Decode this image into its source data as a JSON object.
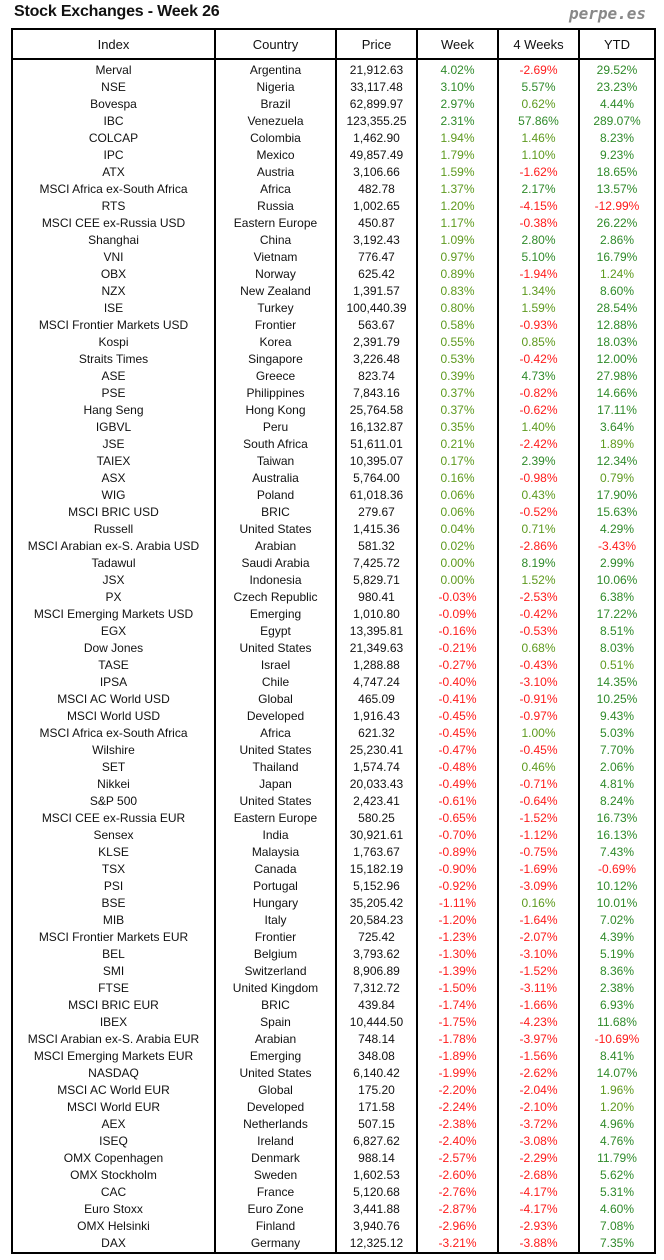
{
  "title": "Stock Exchanges - Week 26",
  "brand": "perpe.es",
  "colors": {
    "positive": "#2f8a2a",
    "negative": "#ff1a1a"
  },
  "headers": [
    "Index",
    "Country",
    "Price",
    "Week",
    "4 Weeks",
    "YTD"
  ],
  "rows": [
    [
      "Merval",
      "Argentina",
      "21,912.63",
      "4.02%",
      "-2.69%",
      "29.52%"
    ],
    [
      "NSE",
      "Nigeria",
      "33,117.48",
      "3.10%",
      "5.57%",
      "23.23%"
    ],
    [
      "Bovespa",
      "Brazil",
      "62,899.97",
      "2.97%",
      "0.62%",
      "4.44%"
    ],
    [
      "IBC",
      "Venezuela",
      "123,355.25",
      "2.31%",
      "57.86%",
      "289.07%"
    ],
    [
      "COLCAP",
      "Colombia",
      "1,462.90",
      "1.94%",
      "1.46%",
      "8.23%"
    ],
    [
      "IPC",
      "Mexico",
      "49,857.49",
      "1.79%",
      "1.10%",
      "9.23%"
    ],
    [
      "ATX",
      "Austria",
      "3,106.66",
      "1.59%",
      "-1.62%",
      "18.65%"
    ],
    [
      "MSCI Africa ex-South Africa",
      "Africa",
      "482.78",
      "1.37%",
      "2.17%",
      "13.57%"
    ],
    [
      "RTS",
      "Russia",
      "1,002.65",
      "1.20%",
      "-4.15%",
      "-12.99%"
    ],
    [
      "MSCI CEE ex-Russia USD",
      "Eastern Europe",
      "450.87",
      "1.17%",
      "-0.38%",
      "26.22%"
    ],
    [
      "Shanghai",
      "China",
      "3,192.43",
      "1.09%",
      "2.80%",
      "2.86%"
    ],
    [
      "VNI",
      "Vietnam",
      "776.47",
      "0.97%",
      "5.10%",
      "16.79%"
    ],
    [
      "OBX",
      "Norway",
      "625.42",
      "0.89%",
      "-1.94%",
      "1.24%"
    ],
    [
      "NZX",
      "New Zealand",
      "1,391.57",
      "0.83%",
      "1.34%",
      "8.60%"
    ],
    [
      "ISE",
      "Turkey",
      "100,440.39",
      "0.80%",
      "1.59%",
      "28.54%"
    ],
    [
      "MSCI Frontier Markets USD",
      "Frontier",
      "563.67",
      "0.58%",
      "-0.93%",
      "12.88%"
    ],
    [
      "Kospi",
      "Korea",
      "2,391.79",
      "0.55%",
      "0.85%",
      "18.03%"
    ],
    [
      "Straits Times",
      "Singapore",
      "3,226.48",
      "0.53%",
      "-0.42%",
      "12.00%"
    ],
    [
      "ASE",
      "Greece",
      "823.74",
      "0.39%",
      "4.73%",
      "27.98%"
    ],
    [
      "PSE",
      "Philippines",
      "7,843.16",
      "0.37%",
      "-0.82%",
      "14.66%"
    ],
    [
      "Hang Seng",
      "Hong Kong",
      "25,764.58",
      "0.37%",
      "-0.62%",
      "17.11%"
    ],
    [
      "IGBVL",
      "Peru",
      "16,132.87",
      "0.35%",
      "1.40%",
      "3.64%"
    ],
    [
      "JSE",
      "South Africa",
      "51,611.01",
      "0.21%",
      "-2.42%",
      "1.89%"
    ],
    [
      "TAIEX",
      "Taiwan",
      "10,395.07",
      "0.17%",
      "2.39%",
      "12.34%"
    ],
    [
      "ASX",
      "Australia",
      "5,764.00",
      "0.16%",
      "-0.98%",
      "0.79%"
    ],
    [
      "WIG",
      "Poland",
      "61,018.36",
      "0.06%",
      "0.43%",
      "17.90%"
    ],
    [
      "MSCI BRIC USD",
      "BRIC",
      "279.67",
      "0.06%",
      "-0.52%",
      "15.63%"
    ],
    [
      "Russell",
      "United States",
      "1,415.36",
      "0.04%",
      "0.71%",
      "4.29%"
    ],
    [
      "MSCI Arabian ex-S. Arabia USD",
      "Arabian",
      "581.32",
      "0.02%",
      "-2.86%",
      "-3.43%"
    ],
    [
      "Tadawul",
      "Saudi Arabia",
      "7,425.72",
      "0.00%",
      "8.19%",
      "2.99%"
    ],
    [
      "JSX",
      "Indonesia",
      "5,829.71",
      "0.00%",
      "1.52%",
      "10.06%"
    ],
    [
      "PX",
      "Czech Republic",
      "980.41",
      "-0.03%",
      "-2.53%",
      "6.38%"
    ],
    [
      "MSCI Emerging Markets USD",
      "Emerging",
      "1,010.80",
      "-0.09%",
      "-0.42%",
      "17.22%"
    ],
    [
      "EGX",
      "Egypt",
      "13,395.81",
      "-0.16%",
      "-0.53%",
      "8.51%"
    ],
    [
      "Dow Jones",
      "United States",
      "21,349.63",
      "-0.21%",
      "0.68%",
      "8.03%"
    ],
    [
      "TASE",
      "Israel",
      "1,288.88",
      "-0.27%",
      "-0.43%",
      "0.51%"
    ],
    [
      "IPSA",
      "Chile",
      "4,747.24",
      "-0.40%",
      "-3.10%",
      "14.35%"
    ],
    [
      "MSCI AC World USD",
      "Global",
      "465.09",
      "-0.41%",
      "-0.91%",
      "10.25%"
    ],
    [
      "MSCI World USD",
      "Developed",
      "1,916.43",
      "-0.45%",
      "-0.97%",
      "9.43%"
    ],
    [
      "MSCI Africa ex-South Africa",
      "Africa",
      "621.32",
      "-0.45%",
      "1.00%",
      "5.03%"
    ],
    [
      "Wilshire",
      "United States",
      "25,230.41",
      "-0.47%",
      "-0.45%",
      "7.70%"
    ],
    [
      "SET",
      "Thailand",
      "1,574.74",
      "-0.48%",
      "0.46%",
      "2.06%"
    ],
    [
      "Nikkei",
      "Japan",
      "20,033.43",
      "-0.49%",
      "-0.71%",
      "4.81%"
    ],
    [
      "S&P 500",
      "United States",
      "2,423.41",
      "-0.61%",
      "-0.64%",
      "8.24%"
    ],
    [
      "MSCI CEE ex-Russia EUR",
      "Eastern Europe",
      "580.25",
      "-0.65%",
      "-1.52%",
      "16.73%"
    ],
    [
      "Sensex",
      "India",
      "30,921.61",
      "-0.70%",
      "-1.12%",
      "16.13%"
    ],
    [
      "KLSE",
      "Malaysia",
      "1,763.67",
      "-0.89%",
      "-0.75%",
      "7.43%"
    ],
    [
      "TSX",
      "Canada",
      "15,182.19",
      "-0.90%",
      "-1.69%",
      "-0.69%"
    ],
    [
      "PSI",
      "Portugal",
      "5,152.96",
      "-0.92%",
      "-3.09%",
      "10.12%"
    ],
    [
      "BSE",
      "Hungary",
      "35,205.42",
      "-1.11%",
      "0.16%",
      "10.01%"
    ],
    [
      "MIB",
      "Italy",
      "20,584.23",
      "-1.20%",
      "-1.64%",
      "7.02%"
    ],
    [
      "MSCI Frontier Markets EUR",
      "Frontier",
      "725.42",
      "-1.23%",
      "-2.07%",
      "4.39%"
    ],
    [
      "BEL",
      "Belgium",
      "3,793.62",
      "-1.30%",
      "-3.10%",
      "5.19%"
    ],
    [
      "SMI",
      "Switzerland",
      "8,906.89",
      "-1.39%",
      "-1.52%",
      "8.36%"
    ],
    [
      "FTSE",
      "United Kingdom",
      "7,312.72",
      "-1.50%",
      "-3.11%",
      "2.38%"
    ],
    [
      "MSCI BRIC EUR",
      "BRIC",
      "439.84",
      "-1.74%",
      "-1.66%",
      "6.93%"
    ],
    [
      "IBEX",
      "Spain",
      "10,444.50",
      "-1.75%",
      "-4.23%",
      "11.68%"
    ],
    [
      "MSCI Arabian ex-S. Arabia EUR",
      "Arabian",
      "748.14",
      "-1.78%",
      "-3.97%",
      "-10.69%"
    ],
    [
      "MSCI Emerging Markets EUR",
      "Emerging",
      "348.08",
      "-1.89%",
      "-1.56%",
      "8.41%"
    ],
    [
      "NASDAQ",
      "United States",
      "6,140.42",
      "-1.99%",
      "-2.62%",
      "14.07%"
    ],
    [
      "MSCI AC World EUR",
      "Global",
      "175.20",
      "-2.20%",
      "-2.04%",
      "1.96%"
    ],
    [
      "MSCI World EUR",
      "Developed",
      "171.58",
      "-2.24%",
      "-2.10%",
      "1.20%"
    ],
    [
      "AEX",
      "Netherlands",
      "507.15",
      "-2.38%",
      "-3.72%",
      "4.96%"
    ],
    [
      "ISEQ",
      "Ireland",
      "6,827.62",
      "-2.40%",
      "-3.08%",
      "4.76%"
    ],
    [
      "OMX Copenhagen",
      "Denmark",
      "988.14",
      "-2.57%",
      "-2.29%",
      "11.79%"
    ],
    [
      "OMX Stockholm",
      "Sweden",
      "1,602.53",
      "-2.60%",
      "-2.68%",
      "5.62%"
    ],
    [
      "CAC",
      "France",
      "5,120.68",
      "-2.76%",
      "-4.17%",
      "5.31%"
    ],
    [
      "Euro Stoxx",
      "Euro Zone",
      "3,441.88",
      "-2.87%",
      "-4.17%",
      "4.60%"
    ],
    [
      "OMX Helsinki",
      "Finland",
      "3,940.76",
      "-2.96%",
      "-2.93%",
      "7.08%"
    ],
    [
      "DAX",
      "Germany",
      "12,325.12",
      "-3.21%",
      "-3.88%",
      "7.35%"
    ]
  ]
}
